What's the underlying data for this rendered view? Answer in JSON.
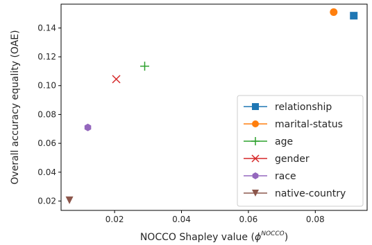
{
  "chart_data": {
    "type": "scatter",
    "title": "",
    "xlabel": "NOCCO Shapley value (",
    "xlabel_symbol": "ϕ",
    "xlabel_superscript": "NOCCO",
    "xlabel_suffix": ")",
    "ylabel": "Overall accuracy equality (OAE)",
    "xlim": [
      0.004,
      0.0955
    ],
    "ylim": [
      0.0135,
      0.1565
    ],
    "xticks": [
      0.02,
      0.04,
      0.06,
      0.08
    ],
    "xtick_labels": [
      "0.02",
      "0.04",
      "0.06",
      "0.08"
    ],
    "yticks": [
      0.02,
      0.04,
      0.06,
      0.08,
      0.1,
      0.12,
      0.14
    ],
    "ytick_labels": [
      "0.02",
      "0.04",
      "0.06",
      "0.08",
      "0.10",
      "0.12",
      "0.14"
    ],
    "grid": false,
    "legend_position": "bottom-right",
    "series": [
      {
        "name": "relationship",
        "x": 0.0915,
        "y": 0.1485,
        "marker": "square",
        "color": "#1f77b4"
      },
      {
        "name": "marital-status",
        "x": 0.0855,
        "y": 0.151,
        "marker": "circle",
        "color": "#ff7f0e"
      },
      {
        "name": "age",
        "x": 0.029,
        "y": 0.1135,
        "marker": "plus",
        "color": "#2ca02c"
      },
      {
        "name": "gender",
        "x": 0.0205,
        "y": 0.1045,
        "marker": "x",
        "color": "#d62728"
      },
      {
        "name": "race",
        "x": 0.012,
        "y": 0.071,
        "marker": "hexagon",
        "color": "#9467bd"
      },
      {
        "name": "native-country",
        "x": 0.0065,
        "y": 0.0205,
        "marker": "triangle-down",
        "color": "#8c564b"
      }
    ]
  }
}
